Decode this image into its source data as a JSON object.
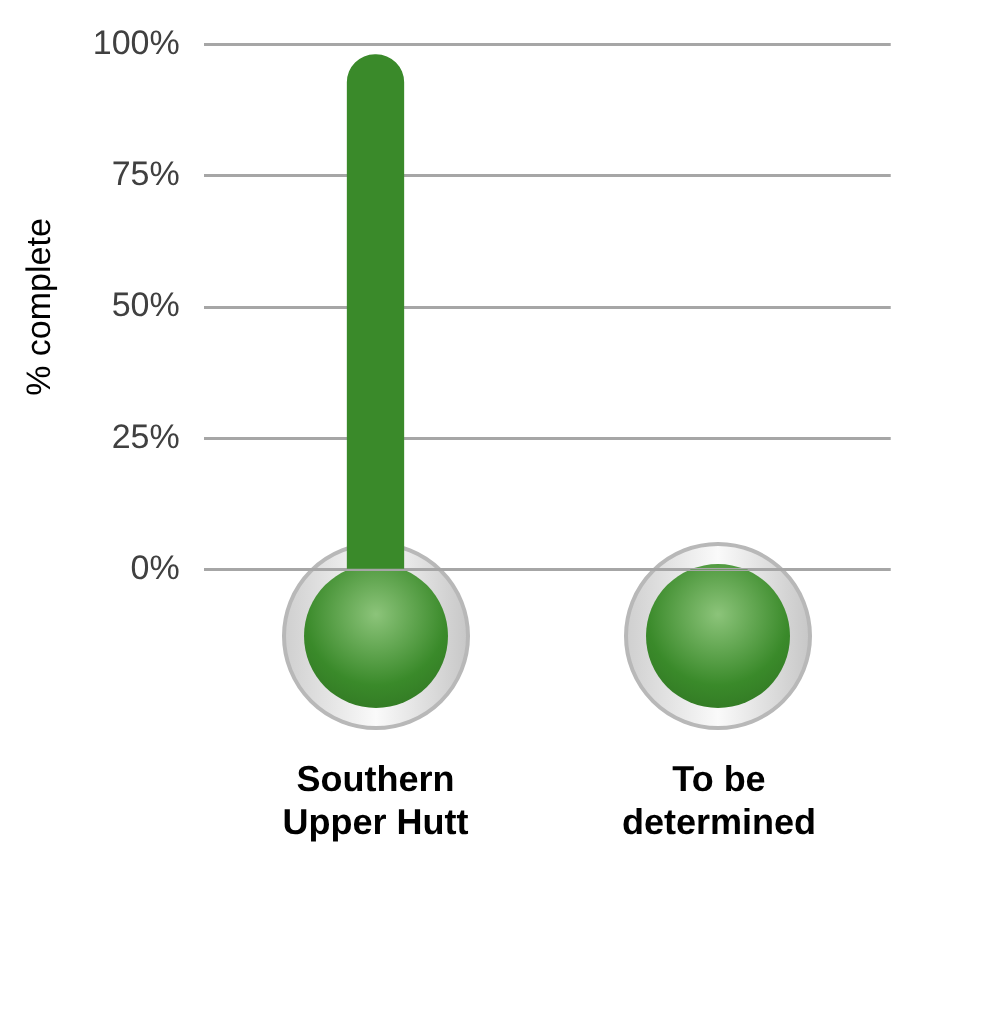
{
  "chart_data": {
    "type": "bar",
    "ylabel": "% complete",
    "categories": [
      "Southern Upper Hutt",
      "To be determined"
    ],
    "values": [
      98,
      0
    ],
    "color": "#3a8a2a",
    "ylim": [
      0,
      100
    ],
    "yticks": [
      {
        "value": 0,
        "label": "0%"
      },
      {
        "value": 25,
        "label": "25%"
      },
      {
        "value": 50,
        "label": "50%"
      },
      {
        "value": 75,
        "label": "75%"
      },
      {
        "value": 100,
        "label": "100%"
      }
    ],
    "grid": "y",
    "legend": false
  }
}
